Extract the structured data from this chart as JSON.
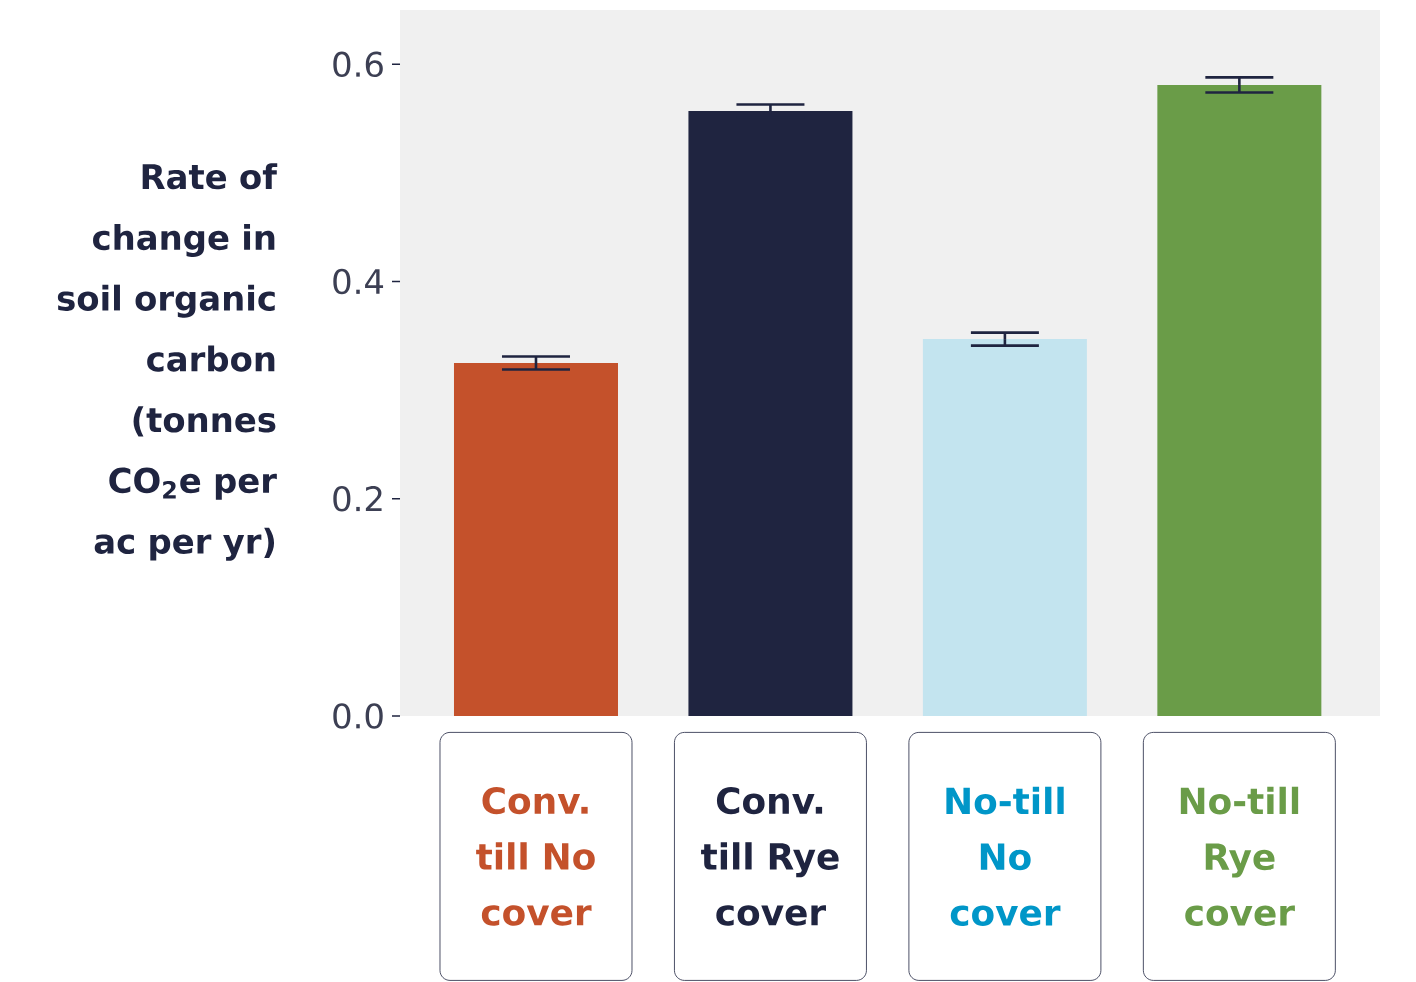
{
  "chart_data": {
    "type": "bar",
    "ylabel": "Rate of change in soil organic carbon (tonnes CO$_{2}$e per ac per yr)",
    "categories": [
      "Conv. till No cover",
      "Conv. till Rye cover",
      "No-till No cover",
      "No-till Rye cover"
    ],
    "values": [
      0.325,
      0.557,
      0.347,
      0.581
    ],
    "errors": [
      0.006,
      0.006,
      0.006,
      0.007
    ],
    "colors": [
      "#c4512b",
      "#1f2440",
      "#c3e4ef",
      "#6a9c48"
    ],
    "ylim": [
      0,
      0.65
    ],
    "yticks": [
      {
        "value": 0,
        "label": "0.0"
      },
      {
        "value": 0.2,
        "label": "0.2"
      },
      {
        "value": 0.4,
        "label": "0.4"
      },
      {
        "value": 0.6,
        "label": "0.6"
      }
    ],
    "grid": false
  }
}
